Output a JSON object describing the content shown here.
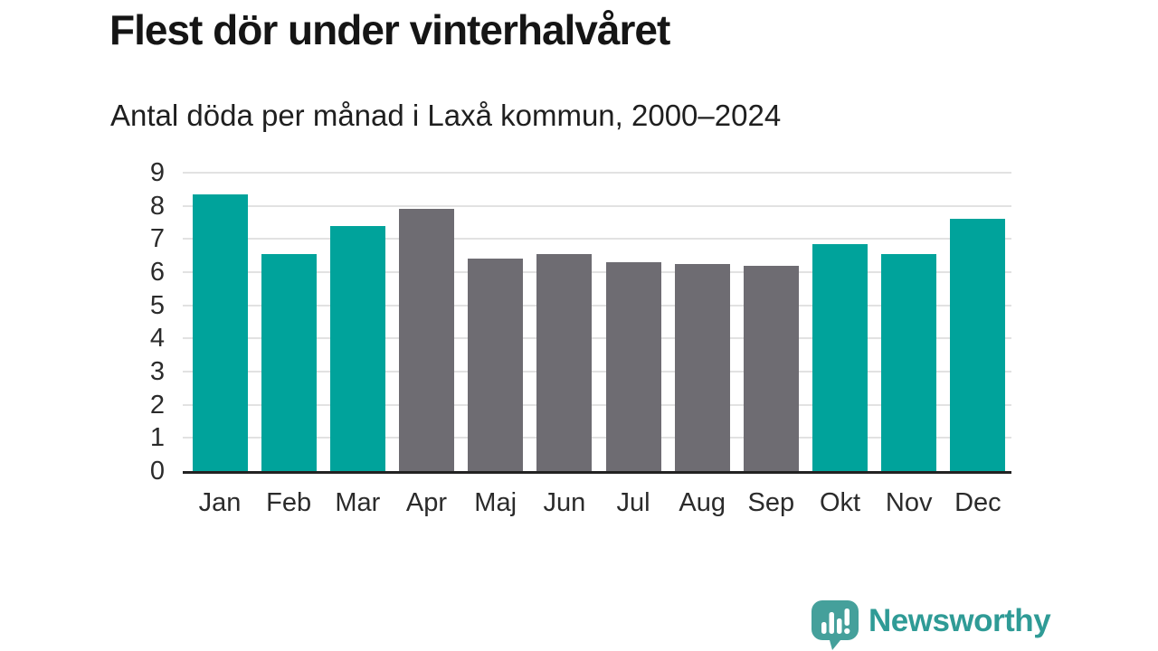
{
  "header": {
    "title": "Flest dör under vinterhalvåret",
    "subtitle": "Antal döda per månad i Laxå kommun, 2000–2024"
  },
  "chart_data": {
    "type": "bar",
    "title": "Flest dör under vinterhalvåret",
    "subtitle": "Antal döda per månad i Laxå kommun, 2000–2024",
    "categories": [
      "Jan",
      "Feb",
      "Mar",
      "Apr",
      "Maj",
      "Jun",
      "Jul",
      "Aug",
      "Sep",
      "Okt",
      "Nov",
      "Dec"
    ],
    "values": [
      8.35,
      6.55,
      7.4,
      7.9,
      6.4,
      6.55,
      6.3,
      6.25,
      6.2,
      6.85,
      6.55,
      7.6
    ],
    "bar_roles": [
      "highlight",
      "highlight",
      "highlight",
      "neutral",
      "neutral",
      "neutral",
      "neutral",
      "neutral",
      "neutral",
      "highlight",
      "highlight",
      "highlight"
    ],
    "xlabel": "",
    "ylabel": "",
    "ylim": [
      0,
      9
    ],
    "yticks": [
      0,
      1,
      2,
      3,
      4,
      5,
      6,
      7,
      8,
      9
    ],
    "grid": true,
    "legend": "none",
    "colors": {
      "highlight": "#00a39b",
      "neutral": "#6e6c72",
      "gridline": "#e2e2e2",
      "axis": "#222222",
      "tick_text": "#2b2b2b"
    }
  },
  "footer": {
    "brand": "Newsworthy",
    "brand_color": "#2f9b96",
    "logo_color": "#45a09b",
    "logo_icon": "bar-chart-speech-bubble"
  }
}
